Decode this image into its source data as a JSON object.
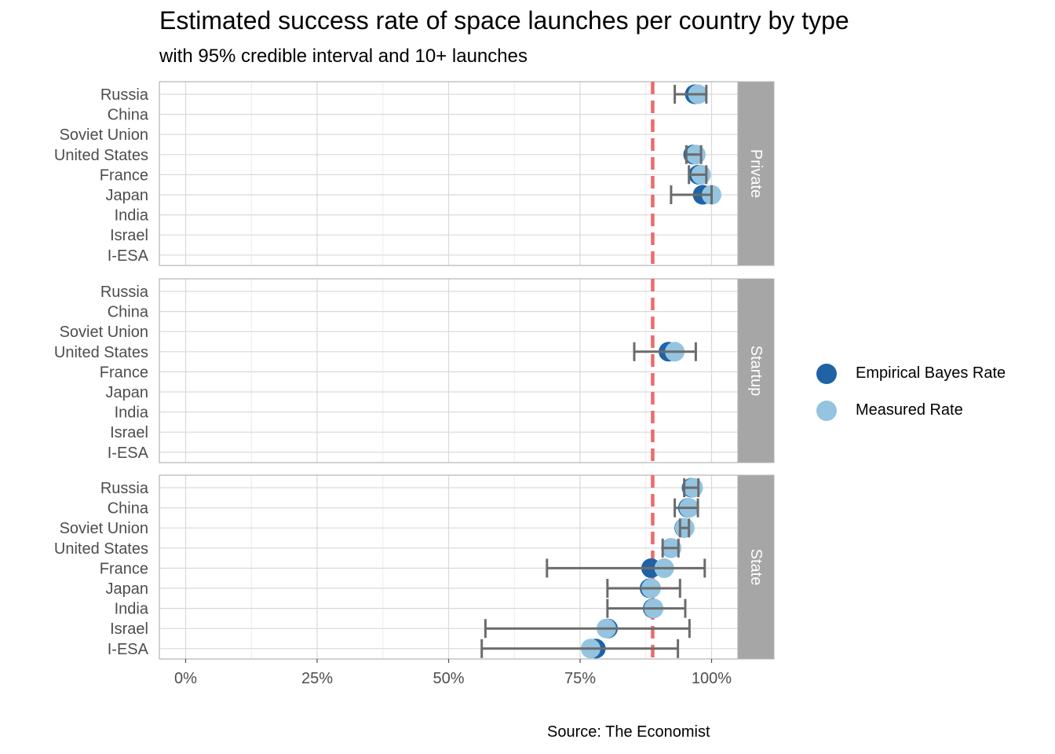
{
  "chart_data": {
    "type": "scatter",
    "title": "Estimated success rate of space launches per country by type",
    "subtitle": "with 95% credible interval and 10+ launches",
    "caption": "Source: The Economist",
    "countries": [
      "Russia",
      "China",
      "Soviet Union",
      "United States",
      "France",
      "Japan",
      "India",
      "Israel",
      "I-ESA"
    ],
    "xlim": [
      -0.05,
      1.05
    ],
    "x_ticks": [
      0,
      0.25,
      0.5,
      0.75,
      1.0
    ],
    "x_tick_labels": [
      "0%",
      "25%",
      "50%",
      "75%",
      "100%"
    ],
    "reference_line": 0.888,
    "legend_position": "right",
    "grid": true,
    "series": [
      {
        "name": "Empirical Bayes Rate",
        "color": "#1f63a6"
      },
      {
        "name": "Measured Rate",
        "color": "#94c4df"
      }
    ],
    "panels": [
      {
        "label": "Private",
        "rows": [
          {
            "country": "Russia",
            "empirical": 0.968,
            "measured": 0.974,
            "low": 0.93,
            "high": 0.99
          },
          {
            "country": "United States",
            "empirical": 0.965,
            "measured": 0.97,
            "low": 0.952,
            "high": 0.98
          },
          {
            "country": "France",
            "empirical": 0.975,
            "measured": 0.98,
            "low": 0.957,
            "high": 0.99
          },
          {
            "country": "Japan",
            "empirical": 0.983,
            "measured": 1.0,
            "low": 0.923,
            "high": 1.0
          }
        ]
      },
      {
        "label": "Startup",
        "rows": [
          {
            "country": "United States",
            "empirical": 0.918,
            "measured": 0.93,
            "low": 0.853,
            "high": 0.97
          }
        ]
      },
      {
        "label": "State",
        "rows": [
          {
            "country": "Russia",
            "empirical": 0.962,
            "measured": 0.965,
            "low": 0.948,
            "high": 0.975
          },
          {
            "country": "China",
            "empirical": 0.955,
            "measured": 0.957,
            "low": 0.93,
            "high": 0.974
          },
          {
            "country": "Soviet Union",
            "empirical": 0.948,
            "measured": 0.949,
            "low": 0.94,
            "high": 0.957
          },
          {
            "country": "United States",
            "empirical": 0.923,
            "measured": 0.924,
            "low": 0.907,
            "high": 0.937
          },
          {
            "country": "France",
            "empirical": 0.885,
            "measured": 0.91,
            "low": 0.687,
            "high": 0.987
          },
          {
            "country": "Japan",
            "empirical": 0.882,
            "measured": 0.885,
            "low": 0.802,
            "high": 0.94
          },
          {
            "country": "India",
            "empirical": 0.888,
            "measured": 0.89,
            "low": 0.802,
            "high": 0.95
          },
          {
            "country": "Israel",
            "empirical": 0.803,
            "measured": 0.8,
            "low": 0.57,
            "high": 0.958
          },
          {
            "country": "I-ESA",
            "empirical": 0.78,
            "measured": 0.77,
            "low": 0.563,
            "high": 0.936
          }
        ]
      }
    ]
  }
}
